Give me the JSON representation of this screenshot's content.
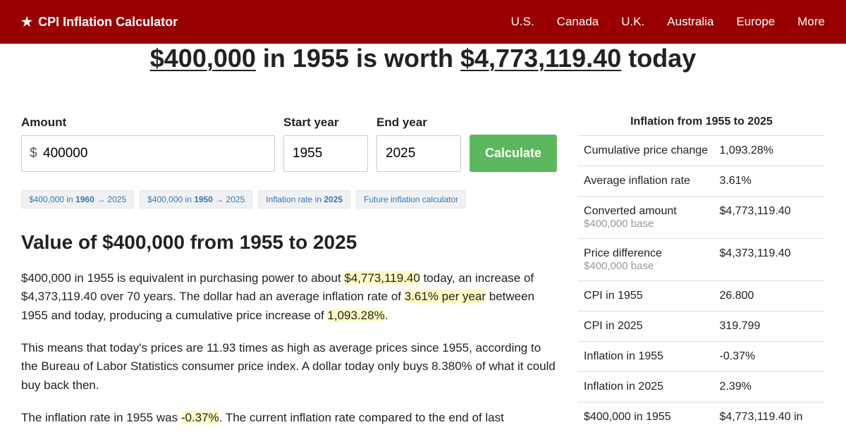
{
  "header": {
    "logo": "CPI Inflation Calculator",
    "nav": [
      "U.S.",
      "Canada",
      "U.K.",
      "Australia",
      "Europe",
      "More"
    ]
  },
  "title": {
    "amount": "$400,000",
    "mid1": " in 1955 is worth ",
    "result": "$4,773,119.40",
    "tail": " today"
  },
  "form": {
    "amount_label": "Amount",
    "amount_value": "400000",
    "start_label": "Start year",
    "start_value": "1955",
    "end_label": "End year",
    "end_value": "2025",
    "btn": "Calculate"
  },
  "pills": {
    "p1_a": "$400,000 in ",
    "p1_b": "1960",
    "p1_c": " → 2025",
    "p2_a": "$400,000 in ",
    "p2_b": "1950",
    "p2_c": " → 2025",
    "p3_a": "Inflation rate in ",
    "p3_b": "2025",
    "p4": "Future inflation calculator"
  },
  "section": {
    "heading": "Value of $400,000 from 1955 to 2025",
    "p1_a": "$400,000 in 1955 is equivalent in purchasing power to about ",
    "p1_h1": "$4,773,119.40",
    "p1_b": " today, an increase of $4,373,119.40 over 70 years. The dollar had an average inflation rate of ",
    "p1_h2": "3.61% per year",
    "p1_c": " between 1955 and today, producing a cumulative price increase of ",
    "p1_h3": "1,093.28%",
    "p1_d": ".",
    "p2": "This means that today's prices are 11.93 times as high as average prices since 1955, according to the Bureau of Labor Statistics consumer price index. A dollar today only buys 8.380% of what it could buy back then.",
    "p3_a": "The inflation rate in 1955 was ",
    "p3_h1": "-0.37%",
    "p3_b": ". The current inflation rate compared to the end of last"
  },
  "info": {
    "title": "Inflation from 1955 to 2025",
    "rows": [
      {
        "label": "Cumulative price change",
        "sub": "",
        "value": "1,093.28%"
      },
      {
        "label": "Average inflation rate",
        "sub": "",
        "value": "3.61%"
      },
      {
        "label": "Converted amount",
        "sub": "$400,000 base",
        "value": "$4,773,119.40"
      },
      {
        "label": "Price difference",
        "sub": "$400,000 base",
        "value": "$4,373,119.40"
      },
      {
        "label": "CPI in 1955",
        "sub": "",
        "value": "26.800"
      },
      {
        "label": "CPI in 2025",
        "sub": "",
        "value": "319.799"
      },
      {
        "label": "Inflation in 1955",
        "sub": "",
        "value": "-0.37%"
      },
      {
        "label": "Inflation in 2025",
        "sub": "",
        "value": "2.39%"
      },
      {
        "label": "$400,000 in 1955",
        "sub": "",
        "value": "$4,773,119.40 in"
      }
    ]
  }
}
